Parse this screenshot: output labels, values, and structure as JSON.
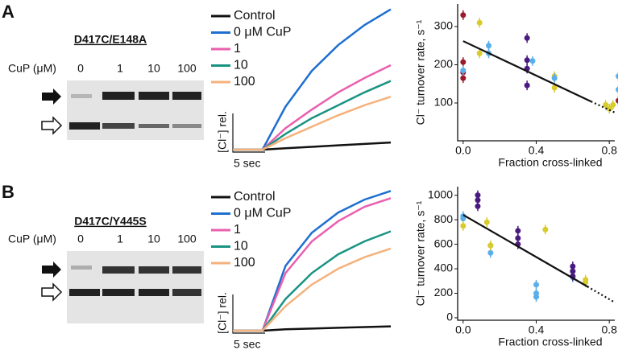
{
  "panels": [
    {
      "label": "A",
      "gel": {
        "title": "D417C/E148A",
        "row_label": "CuP (μM)",
        "lanes": [
          "0",
          "1",
          "10",
          "100"
        ]
      }
    },
    {
      "label": "B",
      "gel": {
        "title": "D417C/Y445S",
        "row_label": "CuP (μM)",
        "lanes": [
          "0",
          "1",
          "10",
          "100"
        ]
      }
    }
  ],
  "chart_data": [
    {
      "type": "line",
      "y_label": "[Cl⁻] rel.",
      "scale_label": "5 sec",
      "x": [
        0,
        4.5,
        8,
        12,
        16,
        20,
        24
      ],
      "xlim": [
        0,
        24
      ],
      "ylim": [
        0,
        1
      ],
      "series": [
        {
          "name": "Control",
          "color": "#111111",
          "values": [
            0,
            0,
            0.01,
            0.02,
            0.03,
            0.04,
            0.05
          ]
        },
        {
          "name": "0 μM CuP",
          "color": "#1e6fd0",
          "values": [
            0,
            0,
            0.3,
            0.55,
            0.73,
            0.87,
            0.98
          ]
        },
        {
          "name": "1",
          "color": "#ea5fae",
          "values": [
            0,
            0,
            0.15,
            0.28,
            0.4,
            0.5,
            0.59
          ]
        },
        {
          "name": "10",
          "color": "#1a9383",
          "values": [
            0,
            0,
            0.11,
            0.22,
            0.31,
            0.4,
            0.48
          ]
        },
        {
          "name": "100",
          "color": "#f4b27c",
          "values": [
            0,
            0,
            0.08,
            0.16,
            0.24,
            0.31,
            0.37
          ]
        }
      ]
    },
    {
      "type": "scatter",
      "y_label": "Cl⁻ turnover rate, s⁻¹",
      "x_label": "Fraction cross-linked",
      "xlim": [
        -0.03,
        0.83
      ],
      "ylim": [
        1,
        359
      ],
      "xticks": [
        {
          "value": 0,
          "label": "0.0"
        },
        {
          "value": 0.4,
          "label": "0.4"
        },
        {
          "value": 0.8,
          "label": "0.8"
        }
      ],
      "yticks": [
        100,
        200,
        300
      ],
      "series": [
        {
          "color": "#9b1b2c",
          "x": [
            0,
            0,
            0,
            0,
            0.85
          ],
          "values": [
            330,
            207,
            180,
            165,
            106
          ]
        },
        {
          "color": "#4a1a80",
          "x": [
            0.35,
            0.35,
            0.35,
            0.35
          ],
          "values": [
            270,
            212,
            190,
            146
          ]
        },
        {
          "color": "#d8cb2c",
          "x": [
            0.09,
            0.09,
            0.5,
            0.5,
            0.78,
            0.8,
            0.82
          ],
          "values": [
            310,
            230,
            170,
            140,
            95,
            85,
            95
          ]
        },
        {
          "color": "#5aaeea",
          "x": [
            0,
            0.14,
            0.14,
            0.38,
            0.5,
            0.85,
            0.85
          ],
          "values": [
            185,
            250,
            230,
            210,
            165,
            170,
            135
          ]
        }
      ],
      "fit": {
        "x": [
          0,
          0.7
        ],
        "values": [
          262,
          104
        ]
      },
      "fit_extrapolation": {
        "x": [
          0.7,
          0.83
        ],
        "values": [
          104,
          75
        ]
      }
    },
    {
      "type": "line",
      "y_label": "[Cl⁻] rel.",
      "scale_label": "5 sec",
      "x": [
        0,
        4.5,
        8,
        12,
        16,
        20,
        24
      ],
      "xlim": [
        0,
        24
      ],
      "ylim": [
        0,
        1
      ],
      "series": [
        {
          "name": "Control",
          "color": "#111111",
          "values": [
            0,
            0,
            0.01,
            0.015,
            0.02,
            0.025,
            0.03
          ]
        },
        {
          "name": "0 μM CuP",
          "color": "#1e6fd0",
          "values": [
            0,
            0,
            0.45,
            0.68,
            0.82,
            0.91,
            0.97
          ]
        },
        {
          "name": "1",
          "color": "#ea5fae",
          "values": [
            0,
            0,
            0.4,
            0.62,
            0.76,
            0.86,
            0.92
          ]
        },
        {
          "name": "10",
          "color": "#1a9383",
          "values": [
            0,
            0,
            0.22,
            0.4,
            0.53,
            0.62,
            0.69
          ]
        },
        {
          "name": "100",
          "color": "#f4b27c",
          "values": [
            0,
            0,
            0.17,
            0.32,
            0.43,
            0.51,
            0.57
          ]
        }
      ]
    },
    {
      "type": "scatter",
      "y_label": "Cl⁻ turnover rate, s⁻¹",
      "x_label": "Fraction cross-linked",
      "xlim": [
        -0.03,
        0.83
      ],
      "ylim": [
        -20,
        1070
      ],
      "xticks": [
        {
          "value": 0,
          "label": "0.0"
        },
        {
          "value": 0.4,
          "label": "0.4"
        },
        {
          "value": 0.8,
          "label": "0.8"
        }
      ],
      "yticks": [
        0,
        200,
        400,
        600,
        800,
        1000
      ],
      "series": [
        {
          "color": "#5aaeea",
          "x": [
            0,
            0,
            0.15,
            0.15,
            0.4,
            0.4,
            0.4,
            0.6,
            0.6
          ],
          "values": [
            830,
            810,
            590,
            530,
            270,
            200,
            170,
            380,
            330
          ]
        },
        {
          "color": "#4a1a80",
          "x": [
            0.08,
            0.08,
            0.08,
            0.3,
            0.3,
            0.3,
            0.6,
            0.6,
            0.6
          ],
          "values": [
            1000,
            960,
            910,
            710,
            650,
            600,
            420,
            380,
            340
          ]
        },
        {
          "color": "#d8cb2c",
          "x": [
            0,
            0.13,
            0.15,
            0.45,
            0.67,
            0.67
          ],
          "values": [
            750,
            780,
            590,
            720,
            310,
            290
          ]
        }
      ],
      "fit": {
        "x": [
          0,
          0.68
        ],
        "values": [
          840,
          255
        ]
      },
      "fit_extrapolation": {
        "x": [
          0.68,
          0.83
        ],
        "values": [
          255,
          125
        ]
      }
    }
  ]
}
